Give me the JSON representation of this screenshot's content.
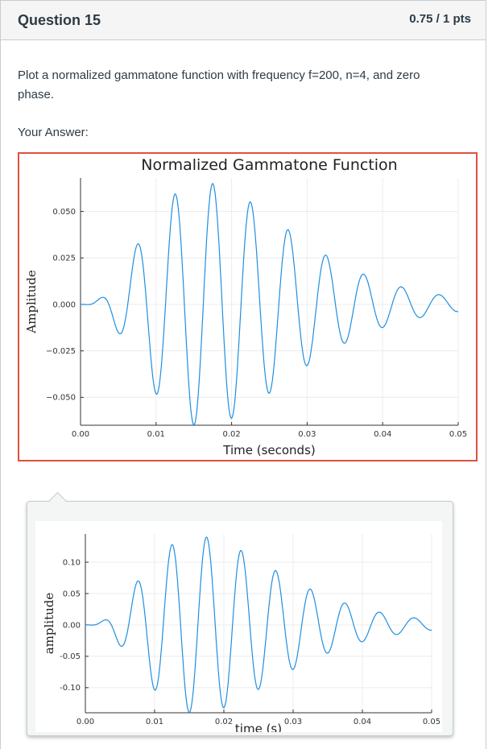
{
  "question": {
    "title": "Question 15",
    "points": "0.75 / 1 pts",
    "prompt": "Plot a normalized gammatone function with frequency f=200, n=4, and zero phase.",
    "answer_label": "Your Answer:"
  },
  "colors": {
    "line": "#1f8fe0",
    "answer_border": "#e0503f"
  },
  "chart_data": [
    {
      "type": "line",
      "title": "Normalized Gammatone Function",
      "xlabel": "Time (seconds)",
      "ylabel": "Amplitude",
      "xlim": [
        0,
        0.05
      ],
      "ylim": [
        -0.065,
        0.068
      ],
      "xticks": [
        "0.00",
        "0.01",
        "0.02",
        "0.03",
        "0.04",
        "0.05"
      ],
      "xtick_values": [
        0,
        0.01,
        0.02,
        0.03,
        0.04,
        0.05
      ],
      "yticks": [
        "−0.050",
        "−0.025",
        "0.000",
        "0.025",
        "0.050"
      ],
      "ytick_values": [
        -0.05,
        -0.025,
        0,
        0.025,
        0.05
      ],
      "grid": true,
      "series": [
        {
          "x": [],
          "values": [],
          "generator": {
            "f": 200,
            "n": 4,
            "peak": 0.065,
            "phase": "zero"
          }
        }
      ]
    },
    {
      "type": "line",
      "title": "",
      "xlabel": "time (s)",
      "ylabel": "amplitude",
      "xlim": [
        0,
        0.05
      ],
      "ylim": [
        -0.14,
        0.145
      ],
      "xticks": [
        "0.00",
        "0.01",
        "0.02",
        "0.03",
        "0.04",
        "0.05"
      ],
      "xtick_values": [
        0,
        0.01,
        0.02,
        0.03,
        0.04,
        0.05
      ],
      "yticks": [
        "-0.10",
        "-0.05",
        "0.00",
        "0.05",
        "0.10"
      ],
      "ytick_values": [
        -0.1,
        -0.05,
        0,
        0.05,
        0.1
      ],
      "grid": true,
      "series": [
        {
          "x": [],
          "values": [],
          "generator": {
            "f": 200,
            "n": 4,
            "peak": 0.14,
            "phase": "zero"
          }
        }
      ]
    }
  ]
}
